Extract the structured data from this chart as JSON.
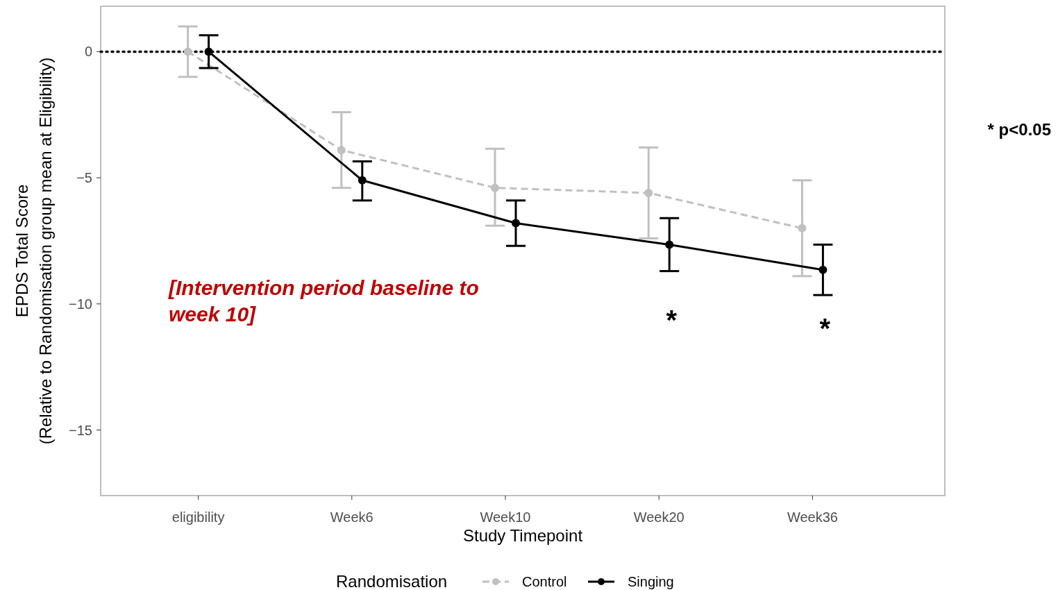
{
  "chart_data": {
    "type": "line",
    "xlabel": "Study Timepoint",
    "ylabel": "EPDS Total Score\n(Relative to Randomisation group mean at Eligibility)",
    "legend_title": "Randomisation",
    "categories": [
      "eligibility",
      "Week6",
      "Week10",
      "Week20",
      "Week36"
    ],
    "series": [
      {
        "name": "Control",
        "color": "#c0c0c0",
        "line_style": "dashed",
        "values": [
          0,
          -3.9,
          -5.4,
          -5.6,
          -7.0
        ],
        "errors": [
          [
            -1.0,
            1.0
          ],
          [
            -5.4,
            -2.4
          ],
          [
            -6.9,
            -3.85
          ],
          [
            -7.4,
            -3.8
          ],
          [
            -8.9,
            -5.1
          ]
        ]
      },
      {
        "name": "Singing",
        "color": "#000000",
        "line_style": "solid",
        "values": [
          0,
          -5.1,
          -6.8,
          -7.65,
          -8.65
        ],
        "errors": [
          [
            -0.65,
            0.65
          ],
          [
            -5.9,
            -4.35
          ],
          [
            -7.7,
            -5.9
          ],
          [
            -8.7,
            -6.6
          ],
          [
            -9.65,
            -7.65
          ]
        ]
      }
    ],
    "ylim": [
      -17.6,
      1.8
    ],
    "yticks": [
      {
        "value": 0,
        "label": "0"
      },
      {
        "value": -5,
        "label": "−5"
      },
      {
        "value": -10,
        "label": "−10"
      },
      {
        "value": -15,
        "label": "−15"
      }
    ],
    "grid": false,
    "legend": "bottom",
    "marker": "circle",
    "ref_lines": [
      {
        "axis": "y",
        "value": 0,
        "color": "#000000",
        "line_style": "dotted"
      }
    ],
    "annotations": [
      "[Intervention period baseline to week 10]",
      "* p<0.05",
      "*",
      "*"
    ]
  }
}
